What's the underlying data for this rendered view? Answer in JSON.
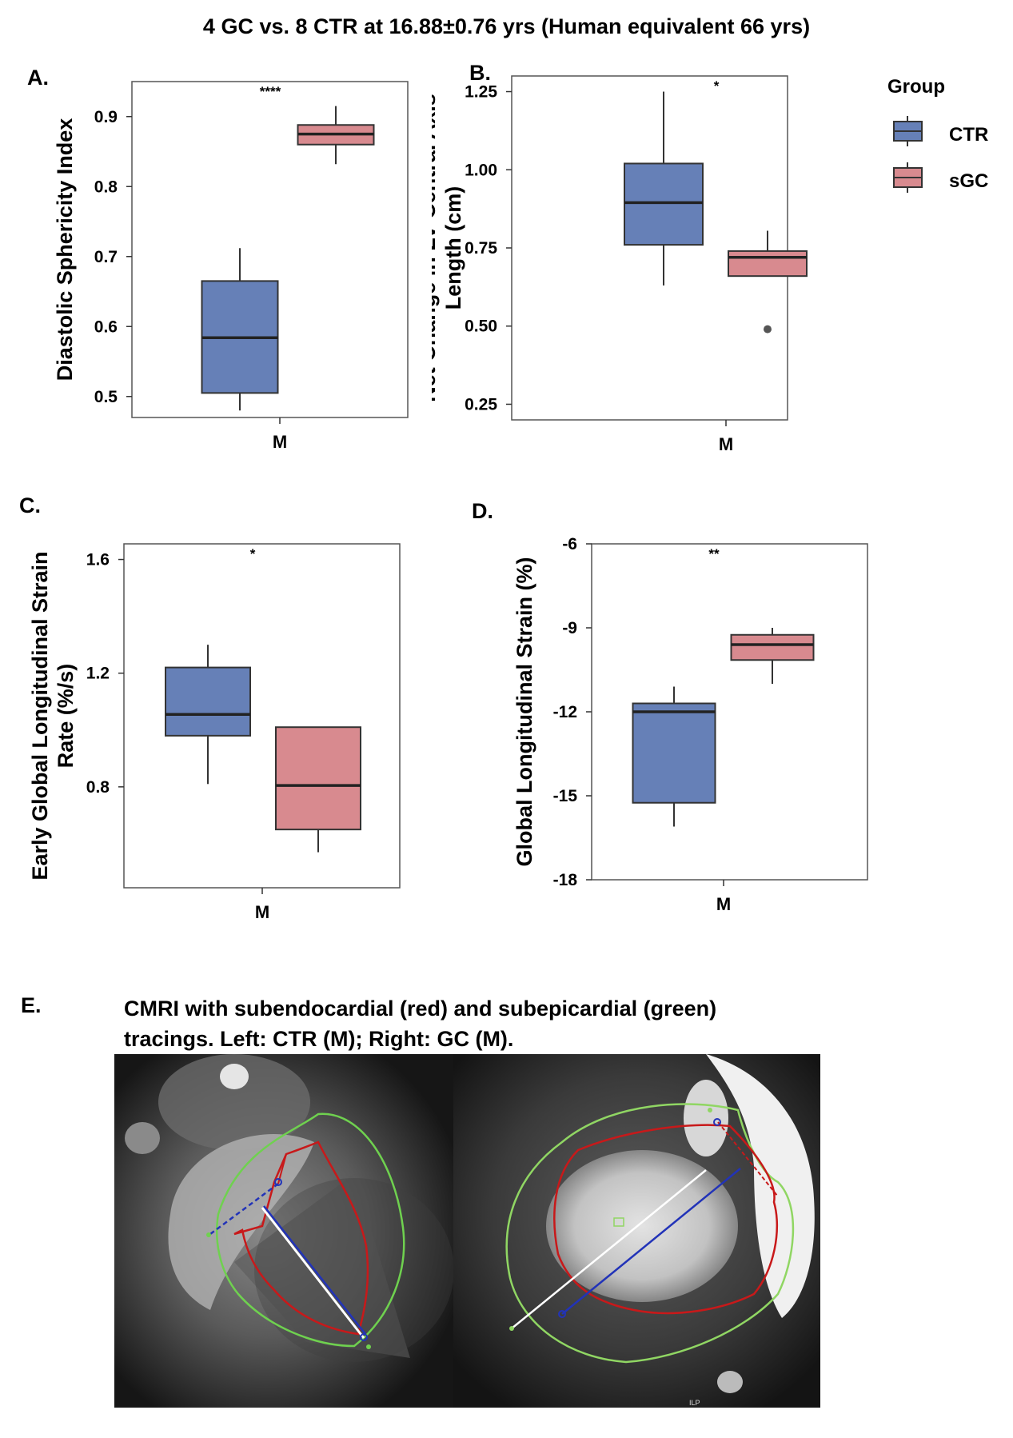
{
  "title": "4 GC vs. 8 CTR at 16.88±0.76  yrs (Human equivalent 66 yrs)",
  "legend": {
    "title": "Group",
    "entries": [
      {
        "label": "CTR",
        "color": "#6680b7"
      },
      {
        "label": "sGC",
        "color": "#d88a8f"
      }
    ]
  },
  "chart_data": [
    {
      "panel": "A.",
      "type": "box",
      "ylabel": [
        "Diastolic Sphericity Index"
      ],
      "xlabel": "M",
      "yticks": [
        0.5,
        0.6,
        0.7,
        0.8,
        0.9
      ],
      "ylim": [
        0.47,
        0.95
      ],
      "significance": "****",
      "boxes": [
        {
          "group": "CTR",
          "whisker_low": 0.48,
          "q1": 0.505,
          "median": 0.584,
          "q3": 0.665,
          "whisker_high": 0.712
        },
        {
          "group": "sGC",
          "whisker_low": 0.832,
          "q1": 0.86,
          "median": 0.875,
          "q3": 0.888,
          "whisker_high": 0.915
        }
      ]
    },
    {
      "panel": "B.",
      "type": "box",
      "ylabel": [
        "Net Change in LV Central Axis",
        "Length (cm)"
      ],
      "xlabel": "M",
      "yticks": [
        0.25,
        0.5,
        0.75,
        1.0,
        1.25
      ],
      "ytick_labels": [
        "0.25",
        "0.50",
        "0.75",
        "1.00",
        "1.25"
      ],
      "ylim": [
        0.2,
        1.3
      ],
      "significance": "*",
      "boxes": [
        {
          "group": "CTR",
          "whisker_low": 0.63,
          "q1": 0.76,
          "median": 0.895,
          "q3": 1.02,
          "whisker_high": 1.25
        },
        {
          "group": "sGC",
          "whisker_low": 0.66,
          "q1": 0.66,
          "median": 0.72,
          "q3": 0.74,
          "whisker_high": 0.805,
          "outliers": [
            0.49
          ]
        }
      ]
    },
    {
      "panel": "C.",
      "type": "box",
      "ylabel": [
        "Early Global Longitudinal  Strain",
        "Rate (%/s)"
      ],
      "xlabel": "M",
      "yticks": [
        0.8,
        1.2,
        1.6
      ],
      "ylim": [
        0.445,
        1.655
      ],
      "significance": "*",
      "boxes": [
        {
          "group": "CTR",
          "whisker_low": 0.81,
          "q1": 0.98,
          "median": 1.055,
          "q3": 1.22,
          "whisker_high": 1.3
        },
        {
          "group": "sGC",
          "whisker_low": 0.57,
          "q1": 0.65,
          "median": 0.805,
          "q3": 1.01,
          "whisker_high": 1.01
        }
      ]
    },
    {
      "panel": "D.",
      "type": "box",
      "ylabel": [
        "Global Longitudinal  Strain (%)"
      ],
      "xlabel": "M",
      "yticks": [
        -18,
        -15,
        -12,
        -9,
        -6
      ],
      "ylim": [
        -18,
        -6
      ],
      "significance": "**",
      "boxes": [
        {
          "group": "CTR",
          "whisker_low": -16.1,
          "q1": -15.25,
          "median": -12.0,
          "q3": -11.7,
          "whisker_high": -11.1
        },
        {
          "group": "sGC",
          "whisker_low": -11.0,
          "q1": -10.15,
          "median": -9.6,
          "q3": -9.25,
          "whisker_high": -9.0
        }
      ]
    }
  ],
  "mri": {
    "panel": "E.",
    "caption_line1": "CMRI with subendocardial (red) and subepicardial (green)",
    "caption_line2": "tracings. Left: CTR (M); Right: GC (M).",
    "corner_mark": "ILP"
  }
}
